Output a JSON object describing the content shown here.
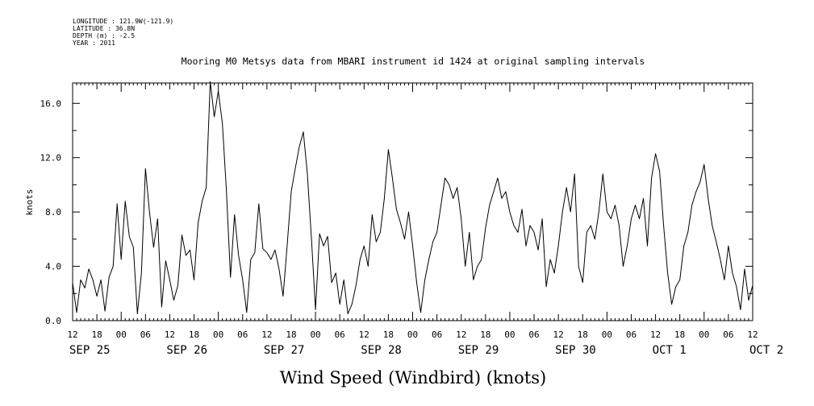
{
  "header": {
    "lines": [
      "LONGITUDE : 121.9W(-121.9)",
      "LATITUDE : 36.8N",
      "DEPTH (m) : -2.5",
      "YEAR : 2011"
    ]
  },
  "chart_data": {
    "type": "line",
    "title": "Mooring M0 Metsys data from MBARI instrument id 1424 at original sampling intervals",
    "xlabel": "Wind Speed (Windbird) (knots)",
    "ylabel": "knots",
    "ylim": [
      0,
      17.5
    ],
    "y_ticks": [
      "0.0",
      "4.0",
      "8.0",
      "12.0",
      "16.0"
    ],
    "xlim_hours": [
      "2011-09-25 12:00",
      "2011-10-02 12:00"
    ],
    "x_hour_ticks": [
      "12",
      "18",
      "00",
      "06",
      "12",
      "18",
      "00",
      "06",
      "12",
      "18",
      "00",
      "06",
      "12",
      "18",
      "00",
      "06",
      "12",
      "18",
      "00",
      "06",
      "12",
      "18",
      "00",
      "06",
      "12",
      "18",
      "00",
      "06",
      "12"
    ],
    "x_day_labels": [
      "SEP 25",
      "SEP 26",
      "SEP 27",
      "SEP 28",
      "SEP 29",
      "SEP 30",
      "OCT  1",
      "OCT  2"
    ],
    "grid": false,
    "series": [
      {
        "color": "#000000",
        "points": [
          [
            "2011-09-25 12:00",
            2.8
          ],
          [
            "2011-09-25 13:00",
            0.6
          ],
          [
            "2011-09-25 14:00",
            3.0
          ],
          [
            "2011-09-25 15:00",
            2.4
          ],
          [
            "2011-09-25 16:00",
            3.8
          ],
          [
            "2011-09-25 17:00",
            3.0
          ],
          [
            "2011-09-25 18:00",
            1.8
          ],
          [
            "2011-09-25 19:00",
            3.0
          ],
          [
            "2011-09-25 20:00",
            0.7
          ],
          [
            "2011-09-25 21:00",
            3.2
          ],
          [
            "2011-09-25 22:00",
            4.0
          ],
          [
            "2011-09-25 23:00",
            8.6
          ],
          [
            "2011-09-26 00:00",
            4.5
          ],
          [
            "2011-09-26 01:00",
            8.8
          ],
          [
            "2011-09-26 02:00",
            6.2
          ],
          [
            "2011-09-26 03:00",
            5.4
          ],
          [
            "2011-09-26 04:00",
            0.5
          ],
          [
            "2011-09-26 05:00",
            3.5
          ],
          [
            "2011-09-26 06:00",
            11.2
          ],
          [
            "2011-09-26 07:00",
            8.0
          ],
          [
            "2011-09-26 08:00",
            5.4
          ],
          [
            "2011-09-26 09:00",
            7.5
          ],
          [
            "2011-09-26 10:00",
            1.0
          ],
          [
            "2011-09-26 11:00",
            4.4
          ],
          [
            "2011-09-26 12:00",
            3.0
          ],
          [
            "2011-09-26 13:00",
            1.5
          ],
          [
            "2011-09-26 14:00",
            2.6
          ],
          [
            "2011-09-26 15:00",
            6.3
          ],
          [
            "2011-09-26 16:00",
            4.8
          ],
          [
            "2011-09-26 17:00",
            5.2
          ],
          [
            "2011-09-26 18:00",
            3.0
          ],
          [
            "2011-09-26 19:00",
            7.2
          ],
          [
            "2011-09-26 20:00",
            8.8
          ],
          [
            "2011-09-26 21:00",
            9.8
          ],
          [
            "2011-09-26 22:00",
            17.6
          ],
          [
            "2011-09-26 23:00",
            15.0
          ],
          [
            "2011-09-27 00:00",
            16.9
          ],
          [
            "2011-09-27 01:00",
            14.5
          ],
          [
            "2011-09-27 02:00",
            9.5
          ],
          [
            "2011-09-27 03:00",
            3.2
          ],
          [
            "2011-09-27 04:00",
            7.8
          ],
          [
            "2011-09-27 05:00",
            4.8
          ],
          [
            "2011-09-27 06:00",
            3.0
          ],
          [
            "2011-09-27 07:00",
            0.6
          ],
          [
            "2011-09-27 08:00",
            4.5
          ],
          [
            "2011-09-27 09:00",
            5.0
          ],
          [
            "2011-09-27 10:00",
            8.6
          ],
          [
            "2011-09-27 11:00",
            5.3
          ],
          [
            "2011-09-27 12:00",
            5.0
          ],
          [
            "2011-09-27 13:00",
            4.5
          ],
          [
            "2011-09-27 14:00",
            5.2
          ],
          [
            "2011-09-27 15:00",
            3.8
          ],
          [
            "2011-09-27 16:00",
            1.8
          ],
          [
            "2011-09-27 17:00",
            5.5
          ],
          [
            "2011-09-27 18:00",
            9.5
          ],
          [
            "2011-09-27 19:00",
            11.2
          ],
          [
            "2011-09-27 20:00",
            12.8
          ],
          [
            "2011-09-27 21:00",
            13.9
          ],
          [
            "2011-09-27 22:00",
            10.8
          ],
          [
            "2011-09-27 23:00",
            6.0
          ],
          [
            "2011-09-28 00:00",
            0.8
          ],
          [
            "2011-09-28 01:00",
            6.4
          ],
          [
            "2011-09-28 02:00",
            5.5
          ],
          [
            "2011-09-28 03:00",
            6.2
          ],
          [
            "2011-09-28 04:00",
            2.8
          ],
          [
            "2011-09-28 05:00",
            3.5
          ],
          [
            "2011-09-28 06:00",
            1.2
          ],
          [
            "2011-09-28 07:00",
            3.0
          ],
          [
            "2011-09-28 08:00",
            0.5
          ],
          [
            "2011-09-28 09:00",
            1.2
          ],
          [
            "2011-09-28 10:00",
            2.6
          ],
          [
            "2011-09-28 11:00",
            4.5
          ],
          [
            "2011-09-28 12:00",
            5.5
          ],
          [
            "2011-09-28 13:00",
            4.0
          ],
          [
            "2011-09-28 14:00",
            7.8
          ],
          [
            "2011-09-28 15:00",
            5.8
          ],
          [
            "2011-09-28 16:00",
            6.5
          ],
          [
            "2011-09-28 17:00",
            9.0
          ],
          [
            "2011-09-28 18:00",
            12.6
          ],
          [
            "2011-09-28 19:00",
            10.5
          ],
          [
            "2011-09-28 20:00",
            8.2
          ],
          [
            "2011-09-28 21:00",
            7.2
          ],
          [
            "2011-09-28 22:00",
            6.0
          ],
          [
            "2011-09-28 23:00",
            8.0
          ],
          [
            "2011-09-29 00:00",
            5.5
          ],
          [
            "2011-09-29 01:00",
            2.8
          ],
          [
            "2011-09-29 02:00",
            0.6
          ],
          [
            "2011-09-29 03:00",
            3.0
          ],
          [
            "2011-09-29 04:00",
            4.5
          ],
          [
            "2011-09-29 05:00",
            5.8
          ],
          [
            "2011-09-29 06:00",
            6.5
          ],
          [
            "2011-09-29 07:00",
            8.5
          ],
          [
            "2011-09-29 08:00",
            10.5
          ],
          [
            "2011-09-29 09:00",
            10.0
          ],
          [
            "2011-09-29 10:00",
            9.0
          ],
          [
            "2011-09-29 11:00",
            9.8
          ],
          [
            "2011-09-29 12:00",
            7.5
          ],
          [
            "2011-09-29 13:00",
            4.0
          ],
          [
            "2011-09-29 14:00",
            6.5
          ],
          [
            "2011-09-29 15:00",
            3.0
          ],
          [
            "2011-09-29 16:00",
            4.0
          ],
          [
            "2011-09-29 17:00",
            4.5
          ],
          [
            "2011-09-29 18:00",
            6.8
          ],
          [
            "2011-09-29 19:00",
            8.5
          ],
          [
            "2011-09-29 20:00",
            9.5
          ],
          [
            "2011-09-29 21:00",
            10.5
          ],
          [
            "2011-09-29 22:00",
            9.0
          ],
          [
            "2011-09-29 23:00",
            9.5
          ],
          [
            "2011-09-30 00:00",
            8.0
          ],
          [
            "2011-09-30 01:00",
            7.0
          ],
          [
            "2011-09-30 02:00",
            6.5
          ],
          [
            "2011-09-30 03:00",
            8.2
          ],
          [
            "2011-09-30 04:00",
            5.5
          ],
          [
            "2011-09-30 05:00",
            7.0
          ],
          [
            "2011-09-30 06:00",
            6.5
          ],
          [
            "2011-09-30 07:00",
            5.2
          ],
          [
            "2011-09-30 08:00",
            7.5
          ],
          [
            "2011-09-30 09:00",
            2.5
          ],
          [
            "2011-09-30 10:00",
            4.5
          ],
          [
            "2011-09-30 11:00",
            3.5
          ],
          [
            "2011-09-30 12:00",
            5.5
          ],
          [
            "2011-09-30 13:00",
            8.0
          ],
          [
            "2011-09-30 14:00",
            9.8
          ],
          [
            "2011-09-30 15:00",
            8.0
          ],
          [
            "2011-09-30 16:00",
            10.8
          ],
          [
            "2011-09-30 17:00",
            4.0
          ],
          [
            "2011-09-30 18:00",
            2.8
          ],
          [
            "2011-09-30 19:00",
            6.5
          ],
          [
            "2011-09-30 20:00",
            7.0
          ],
          [
            "2011-09-30 21:00",
            6.0
          ],
          [
            "2011-09-30 22:00",
            8.0
          ],
          [
            "2011-09-30 23:00",
            10.8
          ],
          [
            "2011-10-01 00:00",
            8.0
          ],
          [
            "2011-10-01 01:00",
            7.5
          ],
          [
            "2011-10-01 02:00",
            8.5
          ],
          [
            "2011-10-01 03:00",
            7.0
          ],
          [
            "2011-10-01 04:00",
            4.0
          ],
          [
            "2011-10-01 05:00",
            5.5
          ],
          [
            "2011-10-01 06:00",
            7.5
          ],
          [
            "2011-10-01 07:00",
            8.5
          ],
          [
            "2011-10-01 08:00",
            7.5
          ],
          [
            "2011-10-01 09:00",
            9.0
          ],
          [
            "2011-10-01 10:00",
            5.5
          ],
          [
            "2011-10-01 11:00",
            10.5
          ],
          [
            "2011-10-01 12:00",
            12.3
          ],
          [
            "2011-10-01 13:00",
            11.0
          ],
          [
            "2011-10-01 14:00",
            7.0
          ],
          [
            "2011-10-01 15:00",
            3.5
          ],
          [
            "2011-10-01 16:00",
            1.2
          ],
          [
            "2011-10-01 17:00",
            2.5
          ],
          [
            "2011-10-01 18:00",
            3.0
          ],
          [
            "2011-10-01 19:00",
            5.5
          ],
          [
            "2011-10-01 20:00",
            6.5
          ],
          [
            "2011-10-01 21:00",
            8.5
          ],
          [
            "2011-10-01 22:00",
            9.5
          ],
          [
            "2011-10-01 23:00",
            10.2
          ],
          [
            "2011-10-02 00:00",
            11.5
          ],
          [
            "2011-10-02 01:00",
            9.0
          ],
          [
            "2011-10-02 02:00",
            7.0
          ],
          [
            "2011-10-02 03:00",
            5.8
          ],
          [
            "2011-10-02 04:00",
            4.5
          ],
          [
            "2011-10-02 05:00",
            3.0
          ],
          [
            "2011-10-02 06:00",
            5.5
          ],
          [
            "2011-10-02 07:00",
            3.5
          ],
          [
            "2011-10-02 08:00",
            2.5
          ],
          [
            "2011-10-02 09:00",
            0.8
          ],
          [
            "2011-10-02 10:00",
            3.8
          ],
          [
            "2011-10-02 11:00",
            1.5
          ],
          [
            "2011-10-02 12:00",
            2.6
          ]
        ]
      }
    ]
  }
}
